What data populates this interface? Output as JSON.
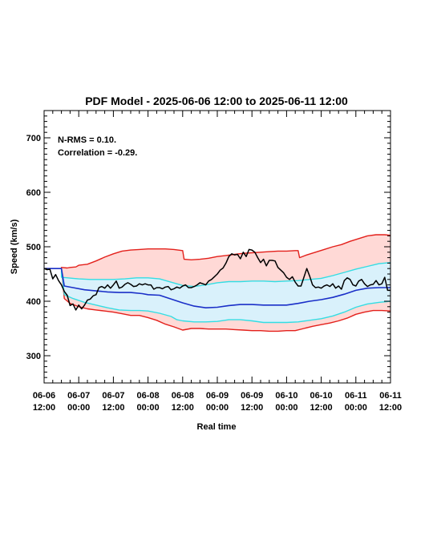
{
  "chart_data": {
    "type": "line",
    "title": "PDF Model - 2025-06-06 12:00 to 2025-06-11 12:00",
    "xlabel": "Real time",
    "ylabel": "Speed (km/s)",
    "xlim": [
      0,
      120
    ],
    "ylim": [
      250,
      750
    ],
    "y_ticks": [
      300,
      400,
      500,
      600,
      700
    ],
    "x_ticks": [
      {
        "x": 0,
        "date": "06-06",
        "time": "12:00"
      },
      {
        "x": 12,
        "date": "06-07",
        "time": "00:00"
      },
      {
        "x": 24,
        "date": "06-07",
        "time": "12:00"
      },
      {
        "x": 36,
        "date": "06-08",
        "time": "00:00"
      },
      {
        "x": 48,
        "date": "06-08",
        "time": "12:00"
      },
      {
        "x": 60,
        "date": "06-09",
        "time": "00:00"
      },
      {
        "x": 72,
        "date": "06-09",
        "time": "12:00"
      },
      {
        "x": 84,
        "date": "06-10",
        "time": "00:00"
      },
      {
        "x": 96,
        "date": "06-10",
        "time": "12:00"
      },
      {
        "x": 108,
        "date": "06-11",
        "time": "00:00"
      },
      {
        "x": 120,
        "date": "06-11",
        "time": "12:00"
      }
    ],
    "annotations": [
      "N-RMS = 0.10.",
      "Correlation = -0.29."
    ],
    "grid": false,
    "colors": {
      "outer_band_fill": "#ffd9d6",
      "inner_band_fill": "#d9f1fb",
      "outer_bound": "#e3201b",
      "inner_bound": "#33dde3",
      "median": "#1a2fc8",
      "observed": "#000000"
    },
    "series": [
      {
        "key": "upper_outer",
        "x": [
          0,
          6,
          6,
          8,
          9,
          11,
          12,
          15,
          18,
          21,
          24,
          27,
          30,
          33,
          36,
          39,
          42,
          45,
          48,
          48.5,
          51,
          54,
          57,
          60,
          63,
          66,
          69,
          72,
          75,
          78,
          81,
          84,
          87,
          88,
          88.5,
          91,
          94,
          97,
          100,
          103,
          106,
          109,
          112,
          115,
          118,
          120
        ],
        "values": [
          460,
          460,
          462,
          461,
          462,
          463,
          466,
          468,
          474,
          481,
          487,
          492,
          494,
          495,
          496,
          496,
          496,
          495,
          493,
          477,
          476,
          477,
          479,
          482,
          484,
          486,
          488,
          489,
          490,
          491,
          492,
          492,
          493,
          493,
          480,
          485,
          490,
          495,
          500,
          504,
          510,
          515,
          520,
          522,
          522,
          521
        ]
      },
      {
        "key": "upper_inner",
        "x": [
          0,
          6,
          6,
          10,
          12,
          16,
          20,
          24,
          28,
          32,
          36,
          40,
          44,
          48,
          52,
          56,
          60,
          64,
          68,
          72,
          76,
          80,
          84,
          88,
          92,
          96,
          100,
          104,
          108,
          112,
          116,
          120
        ],
        "values": [
          460,
          460,
          444,
          442,
          441,
          440,
          440,
          440,
          441,
          443,
          443,
          441,
          435,
          429,
          427,
          430,
          434,
          436,
          436,
          437,
          437,
          436,
          437,
          438,
          440,
          442,
          447,
          453,
          459,
          464,
          469,
          471
        ]
      },
      {
        "key": "median",
        "x": [
          0,
          6,
          7,
          10,
          14,
          18,
          22,
          26,
          30,
          34,
          36,
          40,
          44,
          48,
          52,
          56,
          60,
          64,
          68,
          72,
          76,
          80,
          84,
          88,
          92,
          96,
          100,
          104,
          108,
          112,
          116,
          120
        ],
        "values": [
          460,
          460,
          428,
          425,
          421,
          419,
          417,
          416,
          416,
          414,
          412,
          411,
          404,
          397,
          391,
          388,
          389,
          392,
          394,
          394,
          393,
          393,
          393,
          396,
          400,
          403,
          407,
          413,
          420,
          424,
          425,
          425
        ]
      },
      {
        "key": "lower_inner",
        "x": [
          0,
          6,
          7,
          10,
          14,
          18,
          22,
          26,
          30,
          33,
          36,
          40,
          44,
          46,
          48,
          52,
          56,
          60,
          64,
          68,
          72,
          76,
          80,
          84,
          88,
          92,
          96,
          100,
          104,
          108,
          112,
          116,
          120
        ],
        "values": [
          460,
          460,
          412,
          405,
          398,
          393,
          388,
          384,
          383,
          383,
          382,
          378,
          372,
          366,
          364,
          362,
          362,
          363,
          366,
          366,
          364,
          361,
          361,
          361,
          362,
          365,
          368,
          373,
          380,
          389,
          395,
          398,
          400
        ]
      },
      {
        "key": "lower_outer",
        "x": [
          0,
          6,
          7,
          9,
          12,
          15,
          18,
          21,
          24,
          27,
          30,
          33,
          36,
          39,
          42,
          45,
          48,
          51,
          54,
          57,
          60,
          63,
          66,
          69,
          72,
          75,
          78,
          81,
          84,
          87,
          90,
          93,
          96,
          99,
          102,
          105,
          108,
          111,
          114,
          117,
          120
        ],
        "values": [
          460,
          460,
          405,
          396,
          390,
          386,
          384,
          382,
          380,
          377,
          374,
          374,
          370,
          365,
          358,
          353,
          347,
          350,
          350,
          349,
          349,
          349,
          348,
          347,
          346,
          346,
          345,
          345,
          346,
          346,
          350,
          354,
          357,
          360,
          364,
          369,
          376,
          380,
          383,
          383,
          382
        ]
      },
      {
        "key": "observed",
        "x": [
          0,
          1,
          2,
          3,
          4,
          5,
          6,
          7,
          8,
          9,
          10,
          11,
          12,
          13,
          14,
          15,
          16,
          17,
          18,
          19,
          20,
          21,
          22,
          23,
          24,
          25,
          26,
          27,
          28,
          29,
          30,
          31,
          32,
          33,
          34,
          35,
          36,
          37,
          38,
          39,
          40,
          41,
          42,
          43,
          44,
          45,
          46,
          47,
          48,
          49,
          50,
          51,
          52,
          53,
          54,
          55,
          56,
          57,
          58,
          59,
          60,
          61,
          62,
          63,
          64,
          65,
          66,
          67,
          68,
          69,
          70,
          71,
          72,
          73,
          74,
          75,
          76,
          77,
          78,
          79,
          80,
          81,
          82,
          83,
          84,
          85,
          86,
          87,
          88,
          89,
          90,
          91,
          92,
          93,
          94,
          95,
          96,
          97,
          98,
          99,
          100,
          101,
          102,
          103,
          104,
          105,
          106,
          107,
          108,
          109,
          110,
          111,
          112,
          113,
          114,
          115,
          116,
          117,
          118,
          119,
          120
        ],
        "values": [
          460,
          458,
          459,
          441,
          449,
          438,
          430,
          418,
          411,
          392,
          395,
          384,
          393,
          386,
          393,
          402,
          404,
          410,
          412,
          425,
          427,
          424,
          430,
          424,
          430,
          437,
          424,
          426,
          431,
          434,
          431,
          427,
          428,
          432,
          430,
          432,
          430,
          430,
          422,
          425,
          425,
          423,
          426,
          427,
          421,
          423,
          426,
          424,
          428,
          430,
          425,
          425,
          427,
          430,
          434,
          432,
          430,
          437,
          440,
          445,
          450,
          457,
          461,
          470,
          482,
          487,
          485,
          486,
          478,
          490,
          482,
          495,
          494,
          490,
          480,
          471,
          477,
          465,
          475,
          475,
          474,
          462,
          457,
          452,
          444,
          440,
          445,
          435,
          428,
          428,
          444,
          460,
          446,
          430,
          425,
          426,
          424,
          428,
          430,
          427,
          432,
          424,
          428,
          422,
          438,
          443,
          440,
          430,
          428,
          437,
          440,
          432,
          427,
          430,
          431,
          438,
          430,
          432,
          444,
          420,
          420
        ]
      }
    ]
  }
}
